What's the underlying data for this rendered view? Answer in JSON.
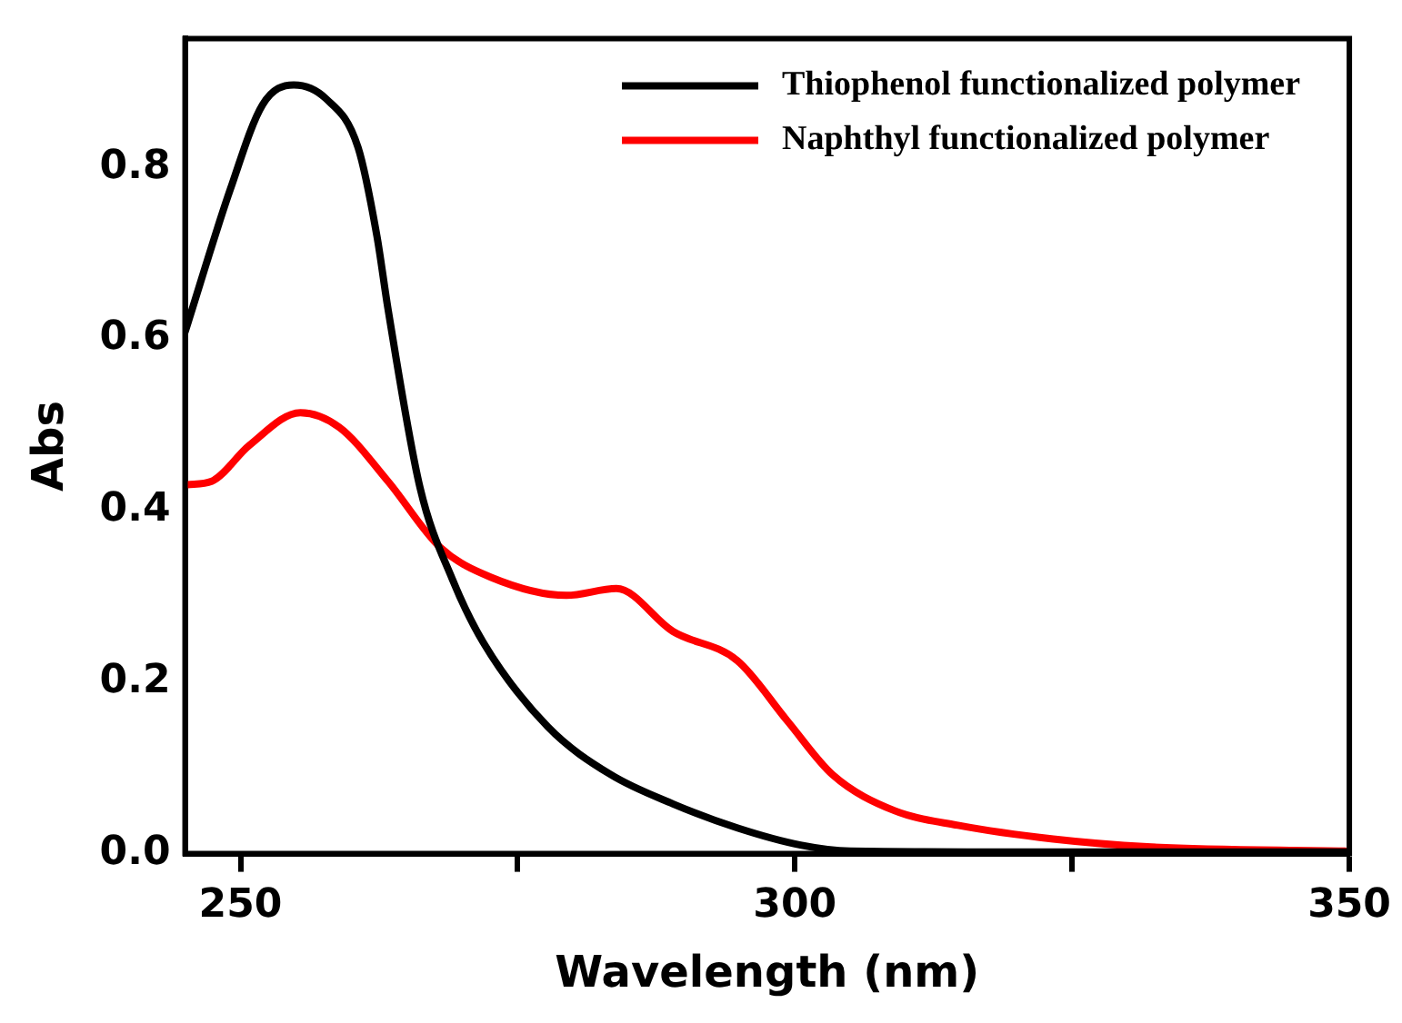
{
  "chart_data": {
    "type": "line",
    "xlabel": "Wavelength (nm)",
    "ylabel": "Abs",
    "xlim": [
      245,
      350
    ],
    "xticks": [
      250,
      {
        "value": 275,
        "label": null
      },
      300,
      {
        "value": 325,
        "label": null
      },
      350
    ],
    "ylim": [
      0,
      0.95
    ],
    "yticks": [
      {
        "value": 0,
        "label": "0.0"
      },
      0.2,
      0.4,
      0.6,
      0.8
    ],
    "grid": false,
    "legend": "top right",
    "marker": "none",
    "line_style": "solid",
    "series": [
      {
        "name": "Thiophenol functionalized polymer",
        "color": "#000000",
        "x": [
          245,
          249.1,
          252,
          254.8,
          257.7,
          260.6,
          262.3,
          263.3,
          266.2,
          269.1,
          271.9,
          277.7,
          283.4,
          289,
          294.8,
          300.5,
          305,
          320,
          350
        ],
        "values": [
          0.608,
          0.775,
          0.873,
          0.896,
          0.88,
          0.823,
          0.72,
          0.635,
          0.426,
          0.32,
          0.246,
          0.148,
          0.092,
          0.058,
          0.03,
          0.01,
          0.003,
          0.002,
          0.002
        ]
      },
      {
        "name": "Naphthyl functionalized polymer",
        "color": "#ff0000",
        "x": [
          245.2,
          247.4,
          250.8,
          255.4,
          258.9,
          263.3,
          268,
          272.6,
          279.4,
          283.9,
          289,
          294.8,
          299.3,
          303.4,
          309,
          314.7,
          323.3,
          331.8,
          349.6
        ],
        "values": [
          0.43,
          0.434,
          0.476,
          0.514,
          0.497,
          0.434,
          0.357,
          0.322,
          0.301,
          0.309,
          0.259,
          0.225,
          0.155,
          0.092,
          0.05,
          0.033,
          0.017,
          0.008,
          0.003
        ]
      }
    ]
  }
}
